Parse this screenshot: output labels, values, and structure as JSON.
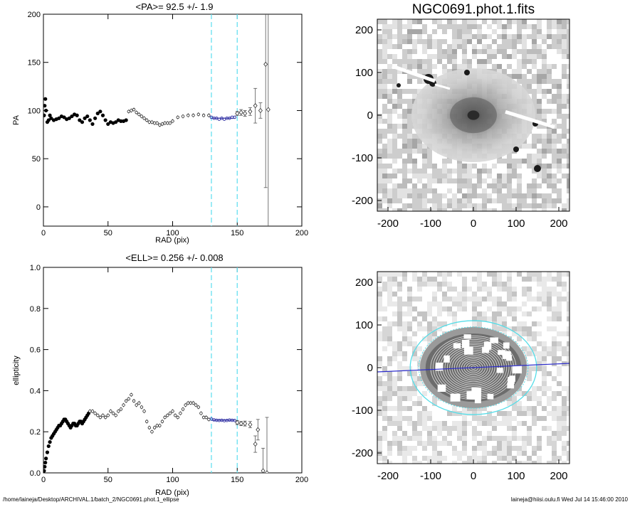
{
  "chart_data": [
    {
      "type": "scatter",
      "title": "<PA>=  92.5 +/-   1.9",
      "xlabel": "RAD (pix)",
      "ylabel": "PA",
      "xlim": [
        0,
        200
      ],
      "ylim": [
        -20,
        200
      ],
      "xticks": [
        "0",
        "50",
        "100",
        "150",
        "200"
      ],
      "yticks": [
        "0",
        "50",
        "100",
        "150",
        "200"
      ],
      "vlines": [
        130,
        150
      ],
      "fit_line": {
        "x": [
          130,
          148
        ],
        "y": [
          92,
          92
        ]
      },
      "series": [
        {
          "style": "dense",
          "x": [
            0.5,
            1,
            1.5,
            2,
            3,
            4,
            5,
            6,
            8,
            10,
            12,
            14,
            16,
            18,
            20,
            22,
            24,
            26,
            28,
            30,
            32,
            34,
            36,
            38,
            40,
            42,
            44,
            46,
            48,
            50,
            52,
            54,
            56,
            58,
            60,
            62,
            64
          ],
          "y": [
            95,
            105,
            112,
            100,
            88,
            90,
            95,
            92,
            90,
            91,
            92,
            94,
            93,
            91,
            92,
            94,
            96,
            95,
            90,
            88,
            92,
            94,
            90,
            86,
            92,
            97,
            99,
            95,
            90,
            86,
            88,
            87,
            88,
            90,
            89,
            89,
            90
          ]
        },
        {
          "style": "open",
          "x": [
            66,
            68,
            70,
            72,
            74,
            76,
            78,
            80,
            82,
            84,
            86,
            88,
            90,
            92,
            94,
            96,
            98,
            100,
            104,
            108,
            112,
            116,
            120,
            124,
            128
          ],
          "y": [
            99,
            100,
            101,
            98,
            96,
            94,
            92,
            90,
            88,
            88,
            87,
            87,
            85,
            86,
            87,
            87,
            87,
            89,
            93,
            94,
            95,
            95,
            96,
            95,
            95
          ]
        },
        {
          "style": "fit",
          "x": [
            130,
            132,
            134,
            136,
            138,
            140,
            142,
            144,
            146,
            148
          ],
          "y": [
            93,
            92,
            92,
            91,
            92,
            91,
            92,
            92,
            93,
            93
          ]
        },
        {
          "style": "error",
          "x": [
            150,
            153,
            156,
            160,
            164,
            168,
            172,
            174
          ],
          "y": [
            97,
            98,
            97,
            99,
            105,
            100,
            148,
            101
          ],
          "err": [
            2,
            3,
            3,
            4,
            18,
            8,
            128,
            190
          ]
        }
      ]
    },
    {
      "type": "scatter",
      "title": "<ELL>= 0.256 +/-  0.008",
      "xlabel": "RAD (pix)",
      "ylabel": "ellipticity",
      "xlim": [
        0,
        200
      ],
      "ylim": [
        0,
        1.0
      ],
      "xticks": [
        "0",
        "50",
        "100",
        "150",
        "200"
      ],
      "yticks": [
        "0.0",
        "0.2",
        "0.4",
        "0.6",
        "0.8",
        "1.0"
      ],
      "vlines": [
        130,
        150
      ],
      "fit_line": {
        "x": [
          130,
          148
        ],
        "y": [
          0.256,
          0.256
        ]
      },
      "series": [
        {
          "style": "dense",
          "x": [
            0.5,
            1,
            1.5,
            2,
            3,
            4,
            5,
            6,
            7,
            8,
            9,
            10,
            11,
            12,
            13,
            14,
            15,
            16,
            17,
            18,
            19,
            20,
            21,
            22,
            23,
            24,
            25,
            26,
            27,
            28,
            29,
            30,
            31,
            32,
            33,
            34,
            35
          ],
          "y": [
            0.01,
            0.03,
            0.05,
            0.07,
            0.1,
            0.13,
            0.15,
            0.17,
            0.18,
            0.19,
            0.2,
            0.21,
            0.22,
            0.23,
            0.23,
            0.24,
            0.25,
            0.26,
            0.26,
            0.25,
            0.24,
            0.23,
            0.22,
            0.23,
            0.24,
            0.24,
            0.23,
            0.23,
            0.24,
            0.25,
            0.25,
            0.24,
            0.25,
            0.26,
            0.27,
            0.28,
            0.29
          ]
        },
        {
          "style": "open",
          "x": [
            36,
            38,
            40,
            42,
            44,
            46,
            48,
            50,
            52,
            54,
            56,
            58,
            60,
            62,
            64,
            66,
            68,
            70,
            72,
            74,
            76,
            78,
            80,
            82,
            84,
            86,
            88,
            90,
            92,
            94,
            96,
            98,
            100,
            102,
            104,
            106,
            108,
            110,
            112,
            114,
            116,
            118,
            120,
            122,
            124,
            126,
            128
          ],
          "y": [
            0.3,
            0.3,
            0.29,
            0.28,
            0.27,
            0.28,
            0.27,
            0.28,
            0.3,
            0.29,
            0.28,
            0.3,
            0.31,
            0.33,
            0.35,
            0.36,
            0.38,
            0.35,
            0.33,
            0.34,
            0.32,
            0.3,
            0.25,
            0.22,
            0.2,
            0.22,
            0.23,
            0.23,
            0.25,
            0.27,
            0.28,
            0.29,
            0.3,
            0.28,
            0.27,
            0.29,
            0.31,
            0.33,
            0.34,
            0.34,
            0.34,
            0.33,
            0.32,
            0.29,
            0.27,
            0.27,
            0.26
          ]
        },
        {
          "style": "fit",
          "x": [
            130,
            132,
            134,
            136,
            138,
            140,
            142,
            144,
            146,
            148
          ],
          "y": [
            0.262,
            0.258,
            0.256,
            0.255,
            0.256,
            0.254,
            0.255,
            0.257,
            0.256,
            0.255
          ]
        },
        {
          "style": "error",
          "x": [
            150,
            153,
            156,
            160,
            164,
            166,
            170,
            173
          ],
          "y": [
            0.245,
            0.24,
            0.24,
            0.235,
            0.14,
            0.21,
            0.01,
            0.0
          ],
          "err": [
            0.01,
            0.01,
            0.012,
            0.015,
            0.04,
            0.05,
            0.11,
            0.27
          ]
        }
      ]
    },
    {
      "type": "heatmap",
      "title": "NGC0691.phot.1.fits",
      "xlim": [
        -225,
        225
      ],
      "ylim": [
        -225,
        225
      ],
      "xticks": [
        "-200",
        "-100",
        "0",
        "100",
        "200"
      ],
      "yticks": [
        "-200",
        "-100",
        "0",
        "100",
        "200"
      ]
    },
    {
      "type": "heatmap",
      "title": "",
      "xlim": [
        -225,
        225
      ],
      "ylim": [
        -225,
        225
      ],
      "xticks": [
        "-200",
        "-100",
        "0",
        "100",
        "200"
      ],
      "yticks": [
        "-200",
        "-100",
        "0",
        "100",
        "200"
      ],
      "outer_ellipse": {
        "center": [
          0,
          0
        ],
        "semi_major": 148,
        "ellipticity": 0.256,
        "pa_deg": 92.5
      },
      "isophote_rings": 18,
      "pa_line": {
        "x": [
          -225,
          225
        ],
        "y": [
          -10,
          10
        ]
      }
    }
  ],
  "footer": {
    "left": "/home/laineja/Desktop/ARCHIVAL.1/batch_2/NGC0691.phot.1_ellipse",
    "right": "laineja@hiisi.oulu.fi  Wed Jul 14 15:46:00 2010"
  },
  "colors": {
    "vline": "#66e0f0",
    "fit": "#3a3aa8",
    "pa_line": "#2a2acc",
    "ellipse": "#55dde8"
  }
}
